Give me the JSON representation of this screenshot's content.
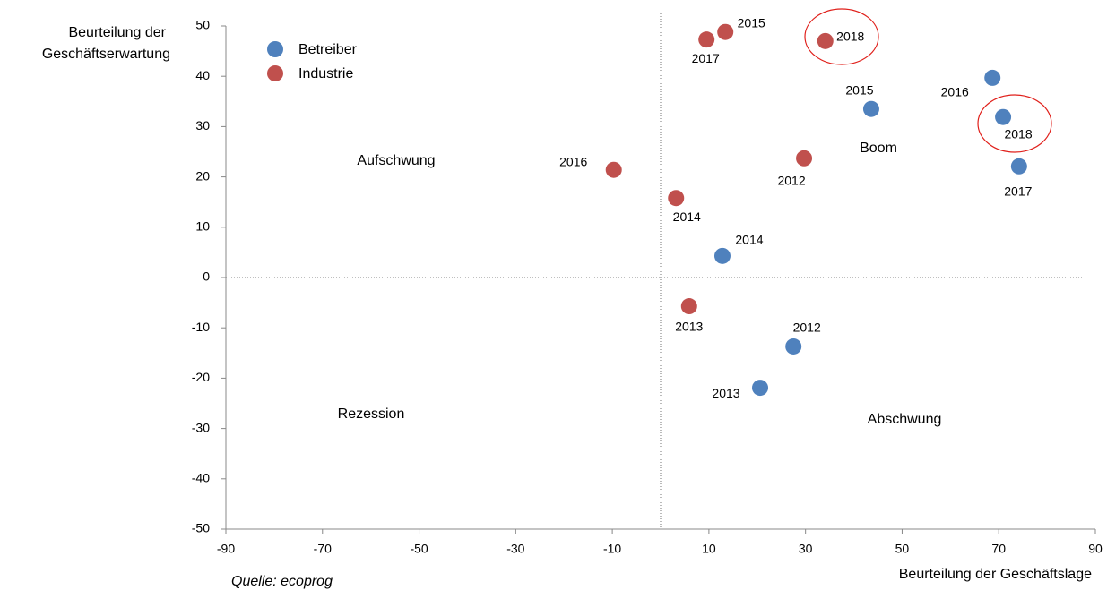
{
  "chart_data": {
    "type": "scatter",
    "x_label": "Beurteilung der Geschäftslage",
    "y_label": [
      "Beurteilung der",
      "Geschäftserwartung"
    ],
    "source": "Quelle: ecoprog",
    "xlim": [
      -90,
      90
    ],
    "xticks": [
      -90,
      -70,
      -50,
      -30,
      -10,
      10,
      30,
      50,
      70,
      90
    ],
    "ylim": [
      -50,
      50
    ],
    "yticks": [
      -50,
      -40,
      -30,
      -20,
      -10,
      0,
      10,
      20,
      30,
      40,
      50
    ],
    "legend": "upper left",
    "annotations": [
      "Aufschwung",
      "Boom",
      "Rezession",
      "Abschwung"
    ],
    "series": [
      {
        "name": "Betreiber",
        "color": "#4f81bd",
        "labels": [
          "2012",
          "2013",
          "2014",
          "2015",
          "2016",
          "2017",
          "2018"
        ],
        "x": [
          27.5,
          20.6,
          12.8,
          43.6,
          68.7,
          74.2,
          70.9
        ],
        "values": [
          -13.7,
          -21.9,
          4.3,
          33.5,
          39.7,
          22.1,
          31.9
        ]
      },
      {
        "name": "Industrie",
        "color": "#c0504d",
        "labels": [
          "2012",
          "2013",
          "2014",
          "2015",
          "2016",
          "2017",
          "2018"
        ],
        "x": [
          29.7,
          5.9,
          3.2,
          13.4,
          -9.7,
          9.5,
          34.1
        ],
        "values": [
          23.7,
          -5.7,
          15.8,
          48.8,
          21.4,
          47.3,
          47.0
        ]
      }
    ]
  }
}
